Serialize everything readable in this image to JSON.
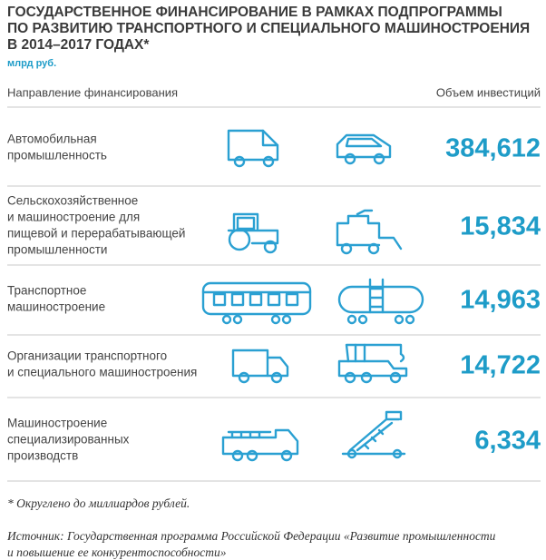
{
  "header": {
    "title_lines": [
      "ГОСУДАРСТВЕННОЕ ФИНАНСИРОВАНИЕ В РАМКАХ ПОДПРОГРАММЫ",
      "ПО РАЗВИТИЮ ТРАНСПОРТНОГО И СПЕЦИАЛЬНОГО МАШИНОСТРОЕНИЯ",
      "В 2014–2017 ГОДАХ*"
    ],
    "unit": "млрд руб."
  },
  "table": {
    "columns": [
      "Направление финансирования",
      "Объем инвестиций"
    ],
    "rows": [
      {
        "label_lines": [
          "Автомобильная",
          "промышленность"
        ],
        "value": "384,612"
      },
      {
        "label_lines": [
          "Сельскохозяйственное",
          "и машиностроение для",
          "пищевой и перерабатывающей",
          "промышленности"
        ],
        "value": "15,834"
      },
      {
        "label_lines": [
          "Транспортное",
          "машиностроение"
        ],
        "value": "14,963"
      },
      {
        "label_lines": [
          "Организации транспортного",
          "и специального машиностроения"
        ],
        "value": "14,722"
      },
      {
        "label_lines": [
          "Машиностроение",
          "специализированных",
          "производств"
        ],
        "value": "6,334"
      }
    ]
  },
  "footnote": "* Округлено до миллиардов рублей.",
  "source_lines": [
    "Источник: Государственная программа Российской Федерации «Развитие промышленности",
    "и повышение ее конкурентоспособности»"
  ]
}
